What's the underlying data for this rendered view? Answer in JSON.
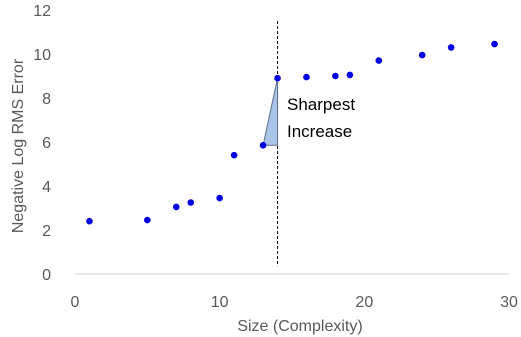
{
  "chart_data": {
    "type": "scatter",
    "title": "",
    "xlabel": "Size (Complexity)",
    "ylabel": "Negative Log RMS Error",
    "xlim": [
      0,
      30
    ],
    "ylim": [
      0,
      12
    ],
    "xticks": [
      0,
      10,
      20,
      30
    ],
    "yticks": [
      0,
      2,
      4,
      6,
      8,
      10,
      12
    ],
    "grid": false,
    "legend": "none",
    "series": [
      {
        "color": "#0000e0",
        "points": [
          {
            "x": 1,
            "y": 2.4
          },
          {
            "x": 5,
            "y": 2.45
          },
          {
            "x": 7,
            "y": 3.05
          },
          {
            "x": 8,
            "y": 3.25
          },
          {
            "x": 10,
            "y": 3.45
          },
          {
            "x": 11,
            "y": 5.4
          },
          {
            "x": 13,
            "y": 5.85
          },
          {
            "x": 14,
            "y": 8.9
          },
          {
            "x": 16,
            "y": 8.95
          },
          {
            "x": 18,
            "y": 9.0
          },
          {
            "x": 19,
            "y": 9.05
          },
          {
            "x": 21,
            "y": 9.7
          },
          {
            "x": 24,
            "y": 9.95
          },
          {
            "x": 26,
            "y": 10.3
          },
          {
            "x": 29,
            "y": 10.45
          }
        ]
      }
    ],
    "annotation": {
      "text_line1": "Sharpest",
      "text_line2": "Increase",
      "vline_x": 14,
      "triangle": {
        "from": {
          "x": 13,
          "y": 5.85
        },
        "to": {
          "x": 14,
          "y": 8.9
        }
      },
      "fill": "#a9c4e6",
      "stroke": "#5b6f8c",
      "line_color": "#000000"
    },
    "axis_color": "#d9d9d9"
  }
}
